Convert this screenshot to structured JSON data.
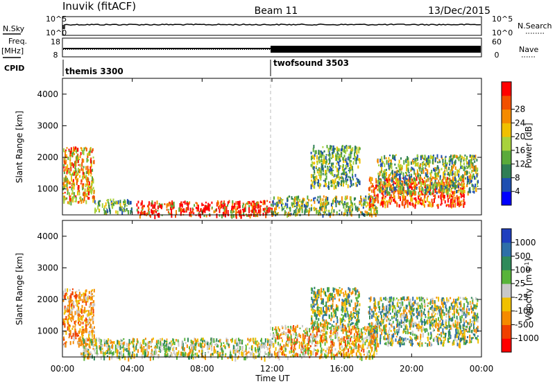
{
  "header": {
    "station": "Inuvik (fitACF)",
    "beam": "Beam 11",
    "date": "13/Dec/2015"
  },
  "panel_labels": {
    "nsky": "N.Sky",
    "nsearch": "N.Search",
    "freq": "Freq.",
    "freq_unit": "[MHz]",
    "nave": "Nave",
    "cpid": "CPID"
  },
  "scales": {
    "nsky_top": "10^5",
    "nsky_bottom": "10^0",
    "nsearch_top": "10^5",
    "nsearch_bottom": "10^0",
    "freq_top": "18",
    "freq_bottom": "8",
    "nave_top": "60",
    "nave_bottom": "0"
  },
  "cpid": [
    {
      "label": "themis 3300",
      "start_hour": 0
    },
    {
      "label": "twofsound 3503",
      "start_hour": 12
    }
  ],
  "axes": {
    "ylabel": "Slant Range [km]",
    "xlabel": "Time UT",
    "x_ticks": [
      "00:00",
      "04:00",
      "08:00",
      "12:00",
      "16:00",
      "20:00",
      "00:00"
    ],
    "y_ticks": [
      "1000",
      "2000",
      "3000",
      "4000"
    ]
  },
  "legends": {
    "power": {
      "label": "Power [dB]",
      "ticks": [
        "4",
        "8",
        "12",
        "16",
        "20",
        "24",
        "28"
      ],
      "colors": [
        "#0000ff",
        "#1e4fb0",
        "#2f7e55",
        "#5aaa3a",
        "#a8d23c",
        "#f0c000",
        "#f58a00",
        "#f25000",
        "#ff0000"
      ]
    },
    "velocity": {
      "label": "Velocity [m s",
      "label_sup": "-1",
      "label_end": "]",
      "ticks": [
        "1000",
        "500",
        "100",
        "25",
        "-25",
        "-100",
        "-500",
        "-1000"
      ],
      "colors": [
        "#1f3fbf",
        "#2e6fa8",
        "#2f8a5a",
        "#58b43a",
        "#c8c8c8",
        "#f0c000",
        "#f58a00",
        "#f04000",
        "#ff0000"
      ]
    }
  },
  "chart_data": {
    "type": "heatmap",
    "time_range_hours": [
      0,
      24
    ],
    "range_range_km": [
      180,
      4500
    ],
    "power_regions": [
      {
        "t0": 0.0,
        "t1": 1.8,
        "r0": 600,
        "r1": 2350,
        "level": "mixed_orange_red"
      },
      {
        "t0": 1.8,
        "t1": 4.0,
        "r0": 300,
        "r1": 700,
        "level": "mixed_green"
      },
      {
        "t0": 4.2,
        "t1": 12.0,
        "r0": 180,
        "r1": 650,
        "level": "red"
      },
      {
        "t0": 14.2,
        "t1": 17.0,
        "r0": 1100,
        "r1": 2400,
        "level": "mixed_green"
      },
      {
        "t0": 12.0,
        "t1": 18.0,
        "r0": 200,
        "r1": 800,
        "level": "mixed_green_blue"
      },
      {
        "t0": 17.5,
        "t1": 23.0,
        "r0": 500,
        "r1": 1400,
        "level": "red_orange"
      },
      {
        "t0": 18.0,
        "t1": 23.8,
        "r0": 900,
        "r1": 2100,
        "level": "green_blue"
      }
    ],
    "velocity_regions": [
      {
        "t0": 0.0,
        "t1": 1.8,
        "r0": 600,
        "r1": 2350,
        "level": "orange"
      },
      {
        "t0": 1.0,
        "t1": 12.0,
        "r0": 180,
        "r1": 800,
        "level": "orange_gray_green"
      },
      {
        "t0": 14.2,
        "t1": 17.0,
        "r0": 1100,
        "r1": 2400,
        "level": "green_orange"
      },
      {
        "t0": 12.0,
        "t1": 18.0,
        "r0": 200,
        "r1": 1200,
        "level": "orange_gray"
      },
      {
        "t0": 17.5,
        "t1": 23.8,
        "r0": 600,
        "r1": 2100,
        "level": "green_blue_orange"
      }
    ]
  }
}
